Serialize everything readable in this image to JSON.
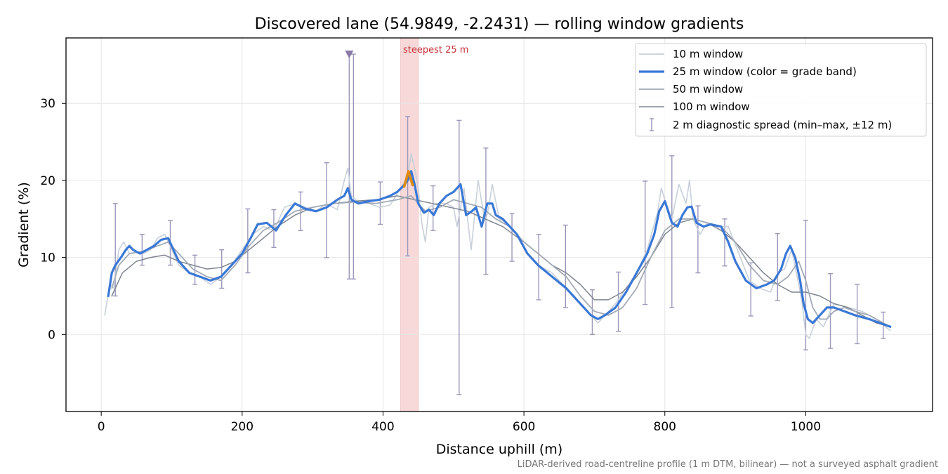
{
  "chart_data": {
    "type": "line",
    "title": "Discovered lane (54.9849, -2.2431) — rolling window gradients",
    "xlabel": "Distance uphill (m)",
    "ylabel": "Gradient (%)",
    "footnote": "LiDAR-derived road-centreline profile (1 m DTM, bilinear) — not a surveyed asphalt gradient",
    "xlim": [
      -50,
      1180
    ],
    "ylim": [
      -10,
      38.5
    ],
    "x_ticks": [
      0,
      200,
      400,
      600,
      800,
      1000
    ],
    "y_ticks": [
      0,
      10,
      20,
      30
    ],
    "x_tick_labels": [
      "0",
      "200",
      "400",
      "600",
      "800",
      "1000"
    ],
    "y_tick_labels": [
      "0",
      "10",
      "20",
      "30"
    ],
    "grid": true,
    "legend_position": "top-right",
    "legend": [
      "10 m window",
      "25 m window (color = grade band)",
      "50 m window",
      "100 m window",
      "2 m diagnostic spread (min–max, ±12 m)"
    ],
    "steepest": {
      "label": "steepest 25 m",
      "x_start": 425,
      "x_end": 450
    },
    "steepest_peak": {
      "x": [
        430,
        436,
        442
      ],
      "y": [
        19.2,
        21.2,
        19.4
      ]
    },
    "peak_marker": {
      "x": 352,
      "y": 36.4
    },
    "colors": {
      "w10": "#c8d0da",
      "w25": "#3a78d6",
      "w25_peak": "#e08a10",
      "w50": "#a2aab6",
      "w100": "#7e8591",
      "diag": "#9a98bb",
      "steep_band": "#f5cccc",
      "steep_label": "#c4323a",
      "marker": "#8a7aa8"
    },
    "series": [
      {
        "name": "10 m window",
        "x": [
          5,
          12,
          18,
          25,
          32,
          40,
          50,
          60,
          70,
          80,
          90,
          100,
          110,
          125,
          140,
          155,
          170,
          185,
          200,
          215,
          230,
          245,
          260,
          275,
          290,
          305,
          320,
          335,
          345,
          350,
          355,
          365,
          380,
          395,
          410,
          425,
          435,
          440,
          445,
          450,
          455,
          460,
          465,
          475,
          490,
          500,
          505,
          515,
          525,
          535,
          545,
          550,
          555,
          565,
          575,
          590,
          605,
          620,
          640,
          660,
          680,
          695,
          705,
          715,
          730,
          745,
          760,
          775,
          790,
          795,
          800,
          810,
          820,
          830,
          835,
          840,
          850,
          860,
          875,
          890,
          905,
          920,
          935,
          950,
          960,
          970,
          980,
          990,
          995,
          1000,
          1005,
          1015,
          1025,
          1040,
          1060,
          1080,
          1100,
          1120
        ],
        "y": [
          2.5,
          6.5,
          6,
          11,
          12,
          10.5,
          10.7,
          10.5,
          11,
          12.5,
          13,
          11,
          9,
          8,
          7.5,
          6.5,
          7.5,
          9,
          11,
          13,
          14,
          13.5,
          16.5,
          17,
          16.5,
          16,
          17,
          16.2,
          20,
          21.6,
          18,
          17.2,
          17,
          16.5,
          16.8,
          19,
          20.5,
          23.5,
          21.5,
          19,
          14.5,
          12,
          16.5,
          17,
          17,
          16.5,
          14,
          19,
          11,
          20,
          14.5,
          16.5,
          19.5,
          15,
          14.5,
          13,
          10.5,
          9,
          8,
          6,
          4,
          2.5,
          1.5,
          2.5,
          4,
          6,
          8,
          11,
          16,
          19,
          17.5,
          15,
          19.5,
          17,
          20,
          15,
          13,
          14.5,
          14,
          14,
          10.5,
          7,
          6,
          5.5,
          8,
          8.5,
          11,
          6.5,
          4,
          0,
          -0.5,
          2,
          1,
          4,
          3.5,
          3,
          2,
          0.5
        ]
      },
      {
        "name": "25 m window",
        "x": [
          10,
          15,
          20,
          28,
          35,
          40,
          45,
          55,
          65,
          75,
          85,
          95,
          100,
          110,
          125,
          140,
          155,
          170,
          185,
          200,
          212,
          222,
          235,
          248,
          262,
          275,
          290,
          305,
          320,
          335,
          345,
          350,
          355,
          365,
          380,
          395,
          410,
          420,
          428,
          435,
          440,
          445,
          450,
          458,
          465,
          472,
          480,
          490,
          500,
          510,
          518,
          526,
          532,
          540,
          548,
          555,
          560,
          570,
          580,
          590,
          605,
          620,
          640,
          660,
          680,
          695,
          705,
          715,
          730,
          745,
          760,
          775,
          785,
          792,
          800,
          810,
          818,
          825,
          832,
          838,
          845,
          855,
          865,
          880,
          890,
          900,
          915,
          930,
          945,
          955,
          965,
          972,
          978,
          985,
          992,
          997,
          1003,
          1010,
          1020,
          1030,
          1040,
          1055,
          1070,
          1090,
          1105,
          1120
        ],
        "y": [
          5,
          8,
          9,
          10,
          11,
          11.5,
          11,
          10.5,
          11,
          11.5,
          12.3,
          12.5,
          11.5,
          9.5,
          8,
          7.5,
          7,
          7.5,
          9,
          10.5,
          12.5,
          14.3,
          14.5,
          13.5,
          15.5,
          17,
          16.3,
          16,
          16.5,
          17.5,
          18,
          19,
          17.5,
          17,
          17.3,
          17.5,
          18,
          18.5,
          19.2,
          20,
          21.2,
          19.4,
          17,
          15.8,
          16.2,
          15.5,
          17,
          18,
          18.5,
          19.5,
          15.5,
          16,
          16.5,
          14,
          17,
          17,
          15.5,
          15,
          14,
          13,
          10.5,
          9,
          7.5,
          6,
          4,
          2.5,
          2,
          2.5,
          3.5,
          5.5,
          8,
          10.5,
          13,
          16,
          17.3,
          14.5,
          14,
          15.5,
          16.5,
          16.6,
          14.5,
          14,
          14.3,
          14,
          12,
          9.5,
          7,
          6,
          6.5,
          7,
          8.5,
          10.5,
          11.5,
          10,
          7,
          4,
          2,
          1.5,
          2.5,
          3.5,
          3.5,
          3,
          2.5,
          2,
          1.5,
          1
        ]
      },
      {
        "name": "50 m window",
        "x": [
          15,
          25,
          40,
          60,
          80,
          95,
          110,
          130,
          150,
          170,
          190,
          210,
          230,
          250,
          275,
          300,
          330,
          360,
          390,
          420,
          440,
          460,
          480,
          500,
          520,
          540,
          560,
          580,
          600,
          620,
          640,
          660,
          680,
          700,
          720,
          740,
          760,
          780,
          800,
          820,
          840,
          860,
          880,
          900,
          920,
          940,
          960,
          975,
          990,
          1000,
          1010,
          1020,
          1030,
          1040,
          1055,
          1070,
          1090,
          1110,
          1120
        ],
        "y": [
          6,
          9,
          10.5,
          10.8,
          11.5,
          12,
          10.5,
          8.5,
          7.5,
          7,
          9,
          11.5,
          13.5,
          14.5,
          16,
          16.5,
          17,
          17.2,
          17,
          17.5,
          18,
          16,
          16.5,
          17.5,
          17,
          16.5,
          15,
          14,
          12,
          10.5,
          9,
          7.5,
          5,
          3,
          2.5,
          3.5,
          6,
          10,
          13.5,
          15,
          15,
          14.5,
          14,
          12,
          9,
          7,
          6.5,
          7.5,
          9.5,
          7,
          3.5,
          2,
          2,
          3,
          3.5,
          3,
          2.5,
          1.5,
          1
        ]
      },
      {
        "name": "100 m window",
        "x": [
          15,
          30,
          50,
          70,
          90,
          110,
          130,
          150,
          170,
          190,
          210,
          230,
          250,
          275,
          300,
          330,
          360,
          390,
          420,
          445,
          470,
          495,
          520,
          545,
          570,
          600,
          620,
          640,
          660,
          680,
          700,
          720,
          740,
          760,
          780,
          800,
          820,
          840,
          860,
          880,
          900,
          920,
          940,
          960,
          980,
          1000,
          1020,
          1040,
          1060,
          1080,
          1100,
          1120
        ],
        "y": [
          5,
          8,
          9.5,
          10,
          10.3,
          9.5,
          9,
          8.5,
          8.7,
          9.5,
          11,
          12.5,
          14,
          15.5,
          16.5,
          17,
          17.3,
          17.5,
          18,
          17.5,
          17,
          16.5,
          16,
          15,
          14,
          12,
          10.5,
          9,
          8,
          6.5,
          4.5,
          4.5,
          5.5,
          7.5,
          10,
          13,
          14.5,
          15,
          14.5,
          13.5,
          12,
          10,
          8,
          6.5,
          5.5,
          5.5,
          5,
          4,
          3.5,
          2.5,
          1.5,
          1
        ]
      }
    ],
    "diagnostic_spread": [
      {
        "x": 20,
        "low": 5,
        "high": 17
      },
      {
        "x": 58,
        "low": 9,
        "high": 13
      },
      {
        "x": 98,
        "low": 9,
        "high": 14.8
      },
      {
        "x": 133,
        "low": 6.5,
        "high": 10.3
      },
      {
        "x": 171,
        "low": 6,
        "high": 11
      },
      {
        "x": 208,
        "low": 8,
        "high": 16.3
      },
      {
        "x": 245,
        "low": 11.3,
        "high": 16.2
      },
      {
        "x": 283,
        "low": 13.5,
        "high": 18.5
      },
      {
        "x": 320,
        "low": 10,
        "high": 22.3
      },
      {
        "x": 352,
        "low": 7.2,
        "high": 36.4
      },
      {
        "x": 358,
        "low": 7.2,
        "high": 36.4
      },
      {
        "x": 396,
        "low": 14.3,
        "high": 19.8
      },
      {
        "x": 435,
        "low": 10.2,
        "high": 28.3
      },
      {
        "x": 471,
        "low": 13.5,
        "high": 19.3
      },
      {
        "x": 508,
        "low": -7.8,
        "high": 27.8
      },
      {
        "x": 546,
        "low": 7.8,
        "high": 24.2
      },
      {
        "x": 583,
        "low": 9.5,
        "high": 15.7
      },
      {
        "x": 621,
        "low": 4.5,
        "high": 13
      },
      {
        "x": 659,
        "low": 3.5,
        "high": 14.2
      },
      {
        "x": 697,
        "low": 0,
        "high": 5.8
      },
      {
        "x": 734,
        "low": 0.4,
        "high": 8.1
      },
      {
        "x": 772,
        "low": 3.9,
        "high": 19.9
      },
      {
        "x": 810,
        "low": 3.5,
        "high": 23.2
      },
      {
        "x": 847,
        "low": 8,
        "high": 16.7
      },
      {
        "x": 885,
        "low": 8.9,
        "high": 15
      },
      {
        "x": 922,
        "low": 2.4,
        "high": 9.3
      },
      {
        "x": 960,
        "low": 4.4,
        "high": 13.1
      },
      {
        "x": 1000,
        "low": -2,
        "high": 14.8
      },
      {
        "x": 1035,
        "low": -1.8,
        "high": 7.9
      },
      {
        "x": 1073,
        "low": -1.2,
        "high": 6.5
      },
      {
        "x": 1110,
        "low": -0.5,
        "high": 2.9
      }
    ]
  }
}
